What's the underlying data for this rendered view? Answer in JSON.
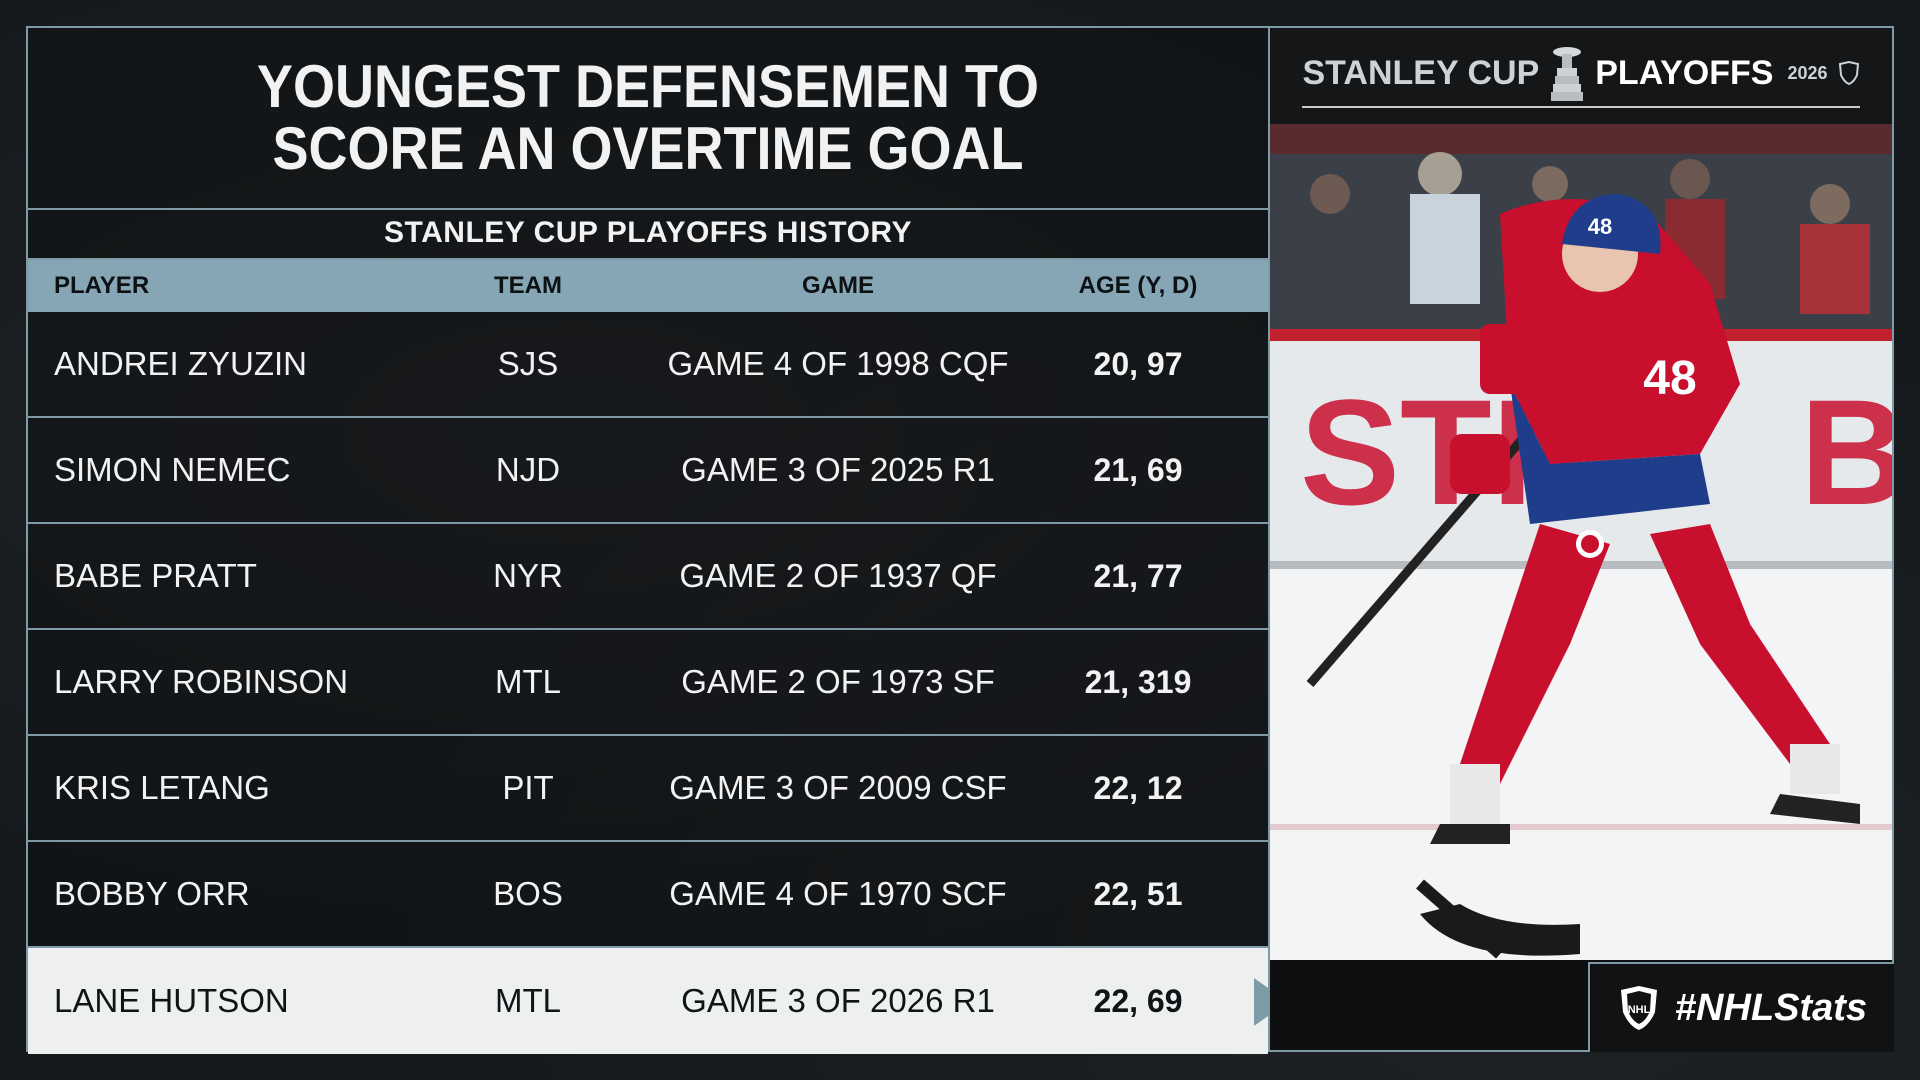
{
  "title": "YOUNGEST DEFENSEMEN TO SCORE AN OVERTIME GOAL",
  "subtitle": "STANLEY CUP PLAYOFFS HISTORY",
  "columns": {
    "player": "PLAYER",
    "team": "TEAM",
    "game": "GAME",
    "age": "AGE (Y, D)"
  },
  "rows": [
    {
      "player": "ANDREI ZYUZIN",
      "team": "SJS",
      "game": "GAME 4 OF 1998 CQF",
      "age": "20, 97"
    },
    {
      "player": "SIMON NEMEC",
      "team": "NJD",
      "game": "GAME 3 OF 2025 R1",
      "age": "21, 69"
    },
    {
      "player": "BABE PRATT",
      "team": "NYR",
      "game": "GAME 2 OF 1937 QF",
      "age": "21, 77"
    },
    {
      "player": "LARRY ROBINSON",
      "team": "MTL",
      "game": "GAME 2 OF 1973 SF",
      "age": "21, 319"
    },
    {
      "player": "KRIS LETANG",
      "team": "PIT",
      "game": "GAME 3 OF 2009 CSF",
      "age": "22, 12"
    },
    {
      "player": "BOBBY ORR",
      "team": "BOS",
      "game": "GAME 4 OF 1970 SCF",
      "age": "22, 51"
    },
    {
      "player": "LANE HUTSON",
      "team": "MTL",
      "game": "GAME 3 OF 2026 R1",
      "age": "22, 69",
      "highlighted": true
    }
  ],
  "brand": {
    "left": "STANLEY CUP",
    "right": "PLAYOFFS",
    "year": "2026",
    "icon": "stanley-cup-icon",
    "badge": "nhl-shield-icon"
  },
  "hashtag": "#NHLStats",
  "hashtag_icon": "nhl-shield-icon",
  "photo_jersey_number": "48",
  "colors": {
    "accent": "#86a6b5",
    "border": "#7e9aa6",
    "highlight_row": "#eef0f0",
    "jersey_red": "#c8102e",
    "jersey_blue": "#1f3d8a"
  }
}
